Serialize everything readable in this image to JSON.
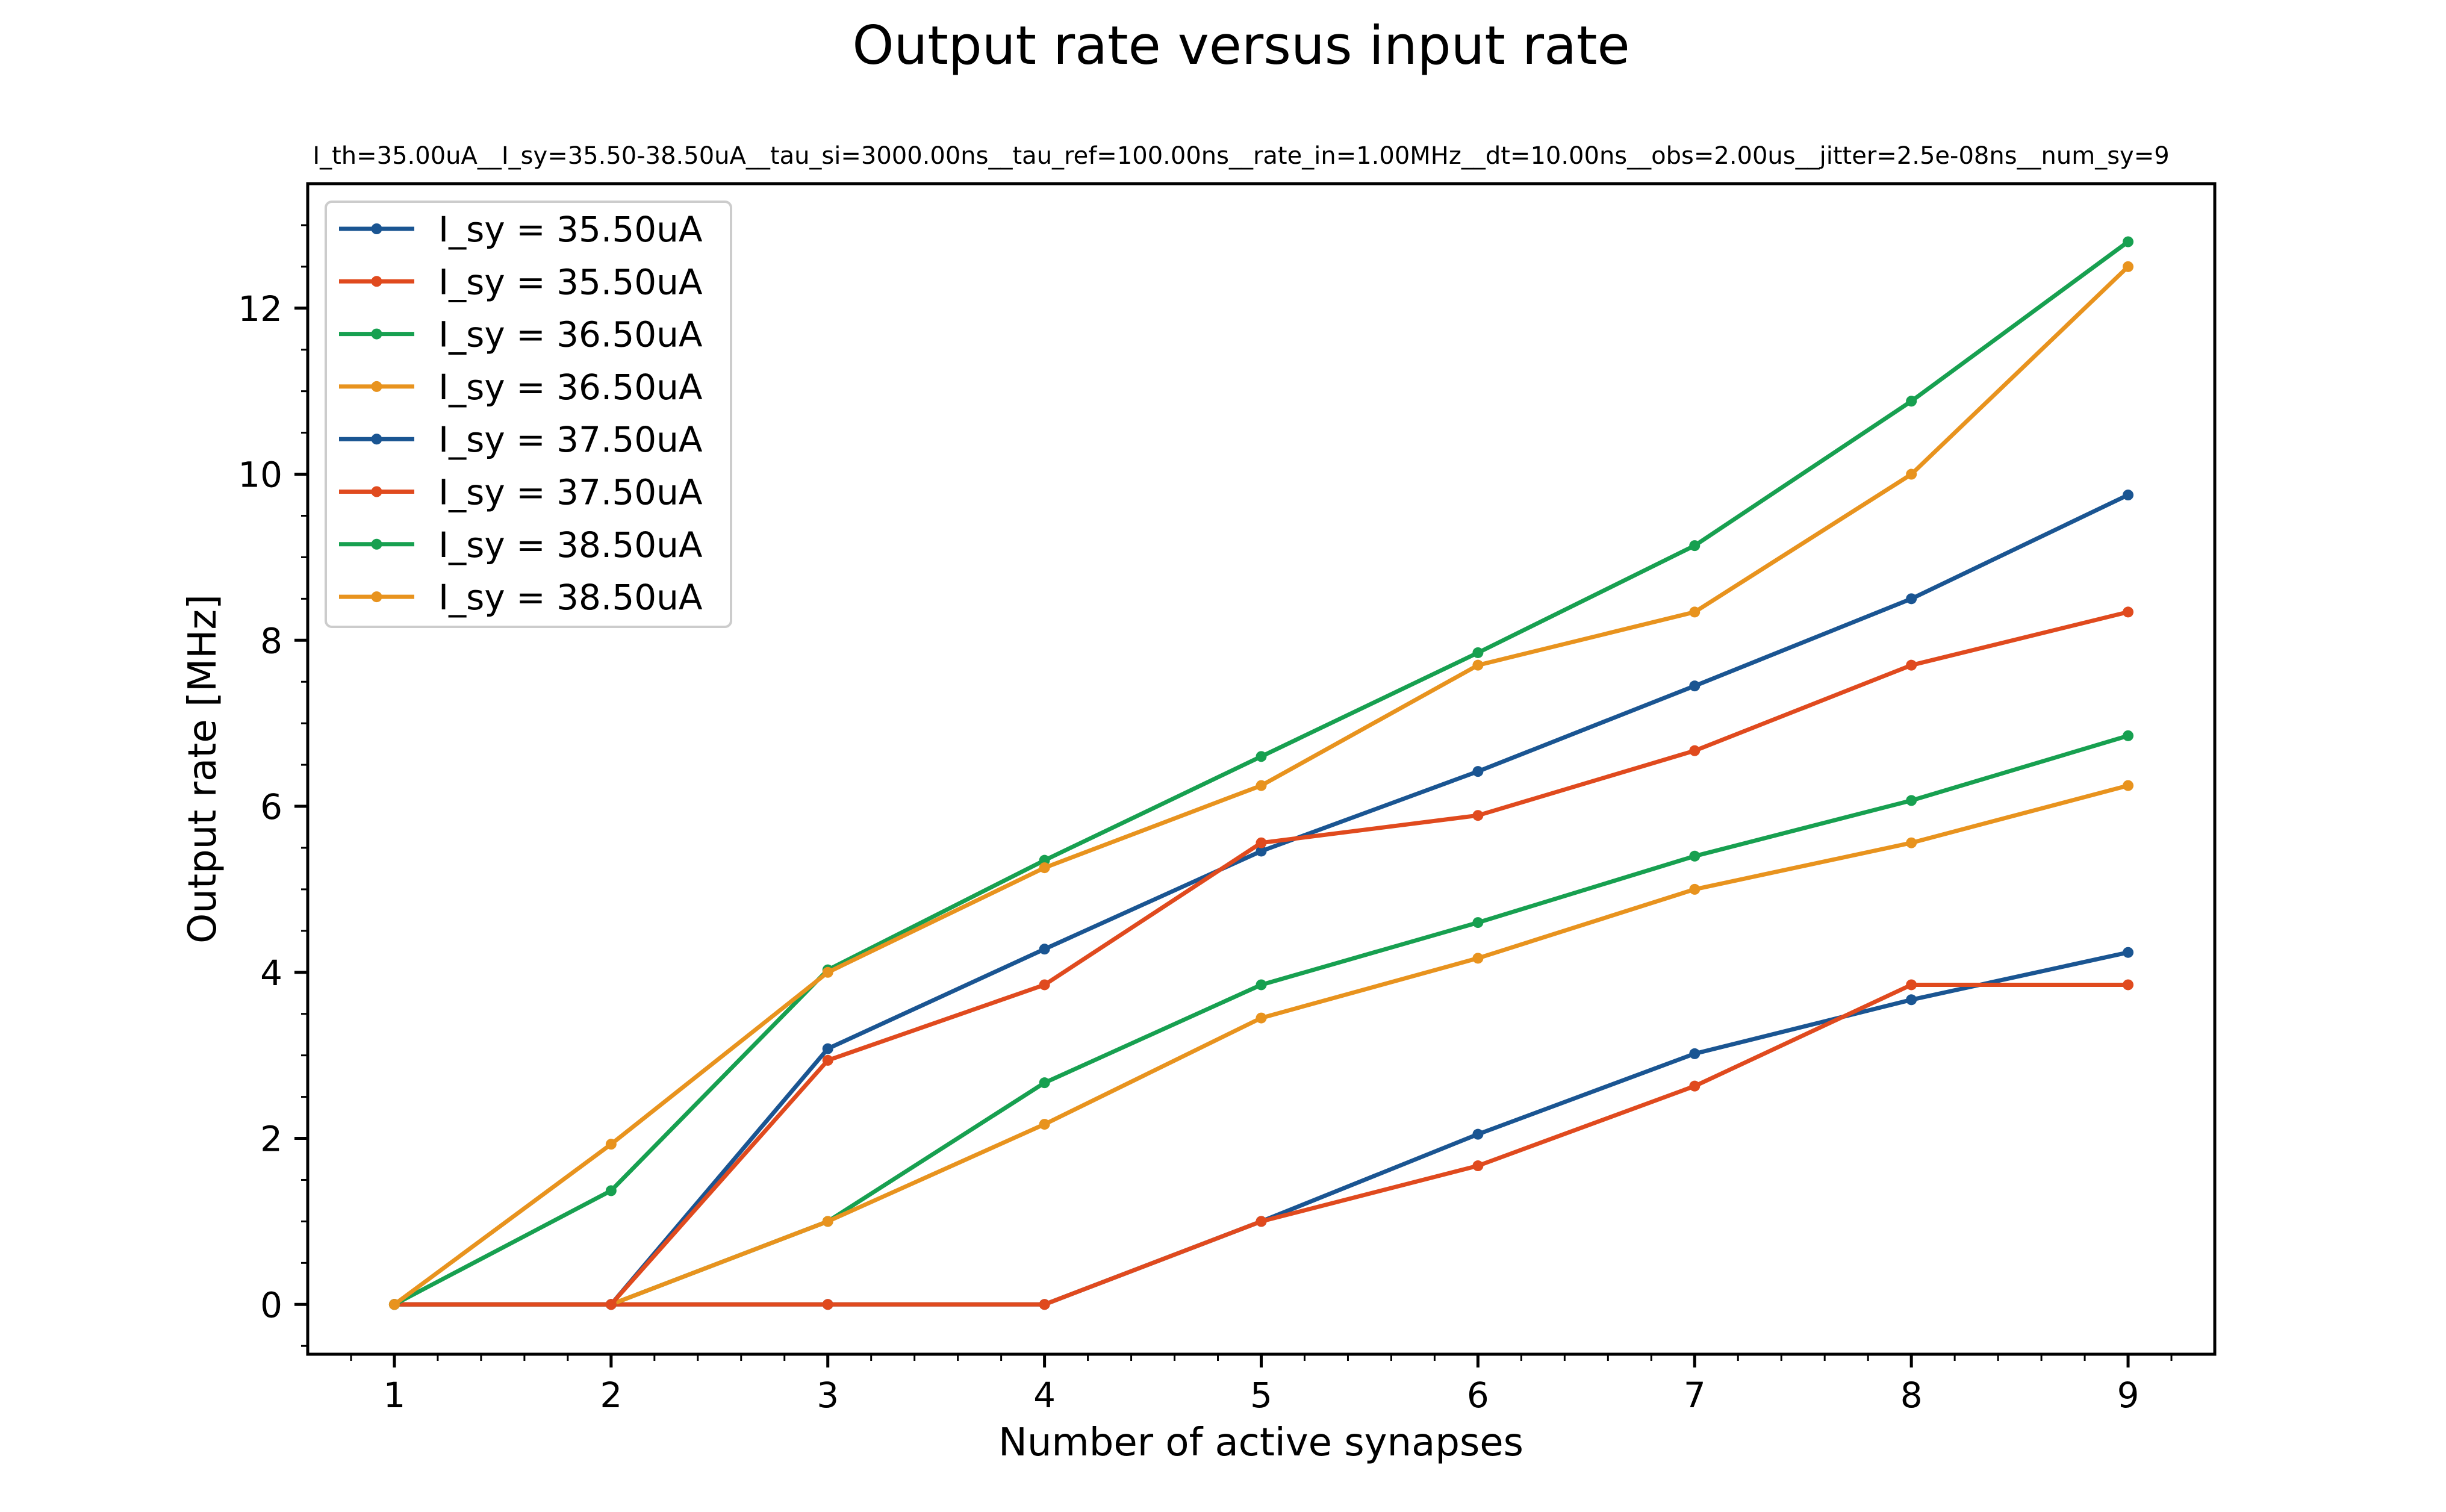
{
  "chart_data": {
    "type": "line",
    "title": "Output rate versus input rate",
    "subtitle": "I_th=35.00uA__I_sy=35.50-38.50uA__tau_si=3000.00ns__tau_ref=100.00ns__rate_in=1.00MHz__dt=10.00ns__obs=2.00us__jitter=2.5e-08ns__num_sy=9",
    "xlabel": "Number of active synapses",
    "ylabel": "Output rate [MHz]",
    "x": [
      1,
      2,
      3,
      4,
      5,
      6,
      7,
      8,
      9
    ],
    "xticks": [
      "1",
      "2",
      "3",
      "4",
      "5",
      "6",
      "7",
      "8",
      "9"
    ],
    "yticks": [
      "0",
      "2",
      "4",
      "6",
      "8",
      "10",
      "12"
    ],
    "xlim": [
      0.6,
      9.4
    ],
    "ylim": [
      -0.6,
      13.5
    ],
    "grid": false,
    "legend_position": "upper-left",
    "series": [
      {
        "name": "I_sy = 35.50uA",
        "color": "#1a5592",
        "values": [
          0,
          0,
          0,
          0,
          1.0,
          2.05,
          3.02,
          3.67,
          4.24
        ]
      },
      {
        "name": "I_sy = 35.50uA",
        "color": "#e04a1e",
        "values": [
          0,
          0,
          0,
          0,
          1.0,
          1.67,
          2.63,
          3.85,
          3.85
        ]
      },
      {
        "name": "I_sy = 36.50uA",
        "color": "#17a050",
        "values": [
          0,
          0,
          1.0,
          2.67,
          3.85,
          4.6,
          5.4,
          6.07,
          6.85
        ]
      },
      {
        "name": "I_sy = 36.50uA",
        "color": "#e8931e",
        "values": [
          0,
          0,
          1.0,
          2.17,
          3.45,
          4.17,
          5.0,
          5.56,
          6.25
        ]
      },
      {
        "name": "I_sy = 37.50uA",
        "color": "#1a5592",
        "values": [
          0,
          0,
          3.08,
          4.28,
          5.46,
          6.42,
          7.45,
          8.5,
          9.75
        ]
      },
      {
        "name": "I_sy = 37.50uA",
        "color": "#e04a1e",
        "values": [
          0,
          0,
          2.94,
          3.85,
          5.56,
          5.89,
          6.67,
          7.7,
          8.34
        ]
      },
      {
        "name": "I_sy = 38.50uA",
        "color": "#17a050",
        "values": [
          0,
          1.37,
          4.03,
          5.35,
          6.6,
          7.85,
          9.14,
          10.88,
          12.8
        ]
      },
      {
        "name": "I_sy = 38.50uA",
        "color": "#e8931e",
        "values": [
          0,
          1.93,
          4.0,
          5.26,
          6.25,
          7.7,
          8.34,
          10.0,
          12.5
        ]
      }
    ]
  }
}
